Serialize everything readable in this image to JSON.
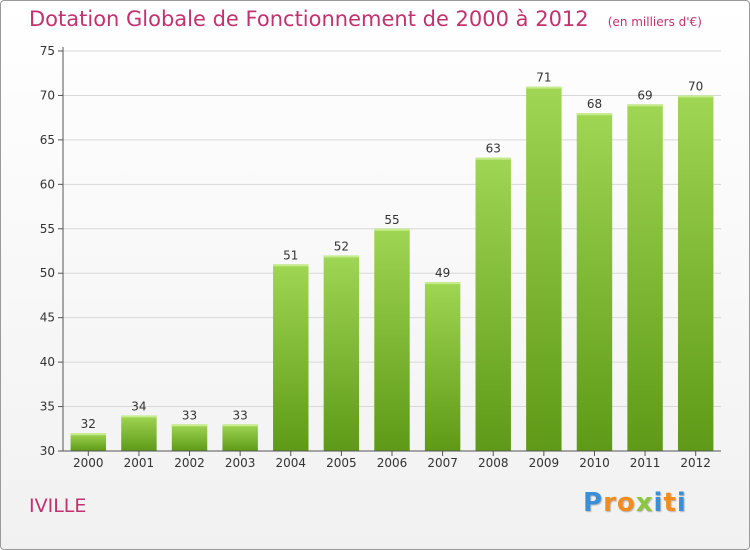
{
  "page": {
    "commune": "IVILLE",
    "brand": "Proxiti"
  },
  "brand_letters": [
    {
      "ch": "P",
      "color": "#3a8fd6"
    },
    {
      "ch": "r",
      "color": "#f28c1e"
    },
    {
      "ch": "o",
      "color": "#f28c1e"
    },
    {
      "ch": "x",
      "color": "#8cc63f"
    },
    {
      "ch": "i",
      "color": "#3a8fd6"
    },
    {
      "ch": "t",
      "color": "#f28c1e"
    },
    {
      "ch": "i",
      "color": "#3a8fd6"
    }
  ],
  "colors": {
    "title": "#c2326e",
    "bar_top": "#9fd653",
    "bar_bottom": "#5e9a17",
    "grid": "#d8d8d8"
  },
  "chart_data": {
    "type": "bar",
    "title": "Dotation Globale de Fonctionnement de 2000 à 2012",
    "unit": "(en milliers d'€)",
    "xlabel": "",
    "ylabel": "",
    "categories": [
      "2000",
      "2001",
      "2002",
      "2003",
      "2004",
      "2005",
      "2006",
      "2007",
      "2008",
      "2009",
      "2010",
      "2011",
      "2012"
    ],
    "values": [
      32,
      34,
      33,
      33,
      51,
      52,
      55,
      49,
      63,
      71,
      68,
      69,
      70
    ],
    "ylim": [
      30,
      75
    ],
    "yticks": [
      30,
      35,
      40,
      45,
      50,
      55,
      60,
      65,
      70,
      75
    ],
    "grid": true,
    "legend": "none"
  }
}
